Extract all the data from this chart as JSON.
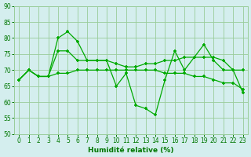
{
  "line1": [
    67,
    70,
    68,
    68,
    80,
    82,
    79,
    73,
    73,
    73,
    65,
    69,
    59,
    58,
    56,
    67,
    76,
    70,
    74,
    78,
    73,
    70,
    70,
    63
  ],
  "line2": [
    67,
    70,
    68,
    68,
    76,
    76,
    73,
    73,
    73,
    73,
    72,
    71,
    71,
    72,
    72,
    73,
    73,
    74,
    74,
    74,
    74,
    73,
    70,
    70
  ],
  "line3": [
    67,
    70,
    68,
    68,
    69,
    69,
    70,
    70,
    70,
    70,
    70,
    70,
    70,
    70,
    70,
    69,
    69,
    69,
    68,
    68,
    67,
    66,
    66,
    64
  ],
  "x": [
    0,
    1,
    2,
    3,
    4,
    5,
    6,
    7,
    8,
    9,
    10,
    11,
    12,
    13,
    14,
    15,
    16,
    17,
    18,
    19,
    20,
    21,
    22,
    23
  ],
  "xlabel": "Humidité relative (%)",
  "ylim": [
    50,
    90
  ],
  "yticks": [
    50,
    55,
    60,
    65,
    70,
    75,
    80,
    85,
    90
  ],
  "xticks": [
    0,
    1,
    2,
    3,
    4,
    5,
    6,
    7,
    8,
    9,
    10,
    11,
    12,
    13,
    14,
    15,
    16,
    17,
    18,
    19,
    20,
    21,
    22,
    23
  ],
  "line_color": "#00aa00",
  "marker": "+",
  "bg_color": "#d4eeee",
  "grid_color": "#99cc99",
  "axis_color": "#007700",
  "figsize": [
    3.2,
    2.0
  ],
  "dpi": 100
}
